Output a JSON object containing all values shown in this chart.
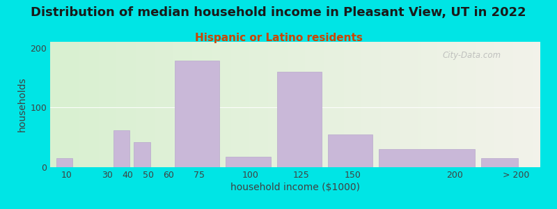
{
  "title": "Distribution of median household income in Pleasant View, UT in 2022",
  "subtitle": "Hispanic or Latino residents",
  "xlabel": "household income ($1000)",
  "ylabel": "households",
  "bar_color": "#c9b8d8",
  "bar_edge_color": "#b8a8cc",
  "background_color": "#00e5e5",
  "plot_bg_left": "#d8f0d0",
  "plot_bg_right": "#f2f2ea",
  "ylim": [
    0,
    210
  ],
  "yticks": [
    0,
    100,
    200
  ],
  "title_fontsize": 13,
  "subtitle_fontsize": 11,
  "axis_label_fontsize": 10,
  "tick_fontsize": 9,
  "watermark": "City-Data.com",
  "bar_lefts": [
    5,
    25,
    33,
    43,
    53,
    63,
    88,
    113,
    138,
    163,
    213
  ],
  "bar_widths": [
    8,
    5,
    8,
    8,
    8,
    22,
    22,
    22,
    22,
    47,
    18
  ],
  "bar_heights": [
    15,
    0,
    62,
    42,
    0,
    178,
    17,
    160,
    55,
    30,
    15
  ],
  "xtick_positions": [
    10,
    30,
    40,
    50,
    60,
    75,
    100,
    125,
    150,
    200,
    230
  ],
  "xtick_labels": [
    "10",
    "30",
    "40",
    "50",
    "60",
    "75",
    "100",
    "125",
    "150",
    "200",
    "> 200"
  ]
}
